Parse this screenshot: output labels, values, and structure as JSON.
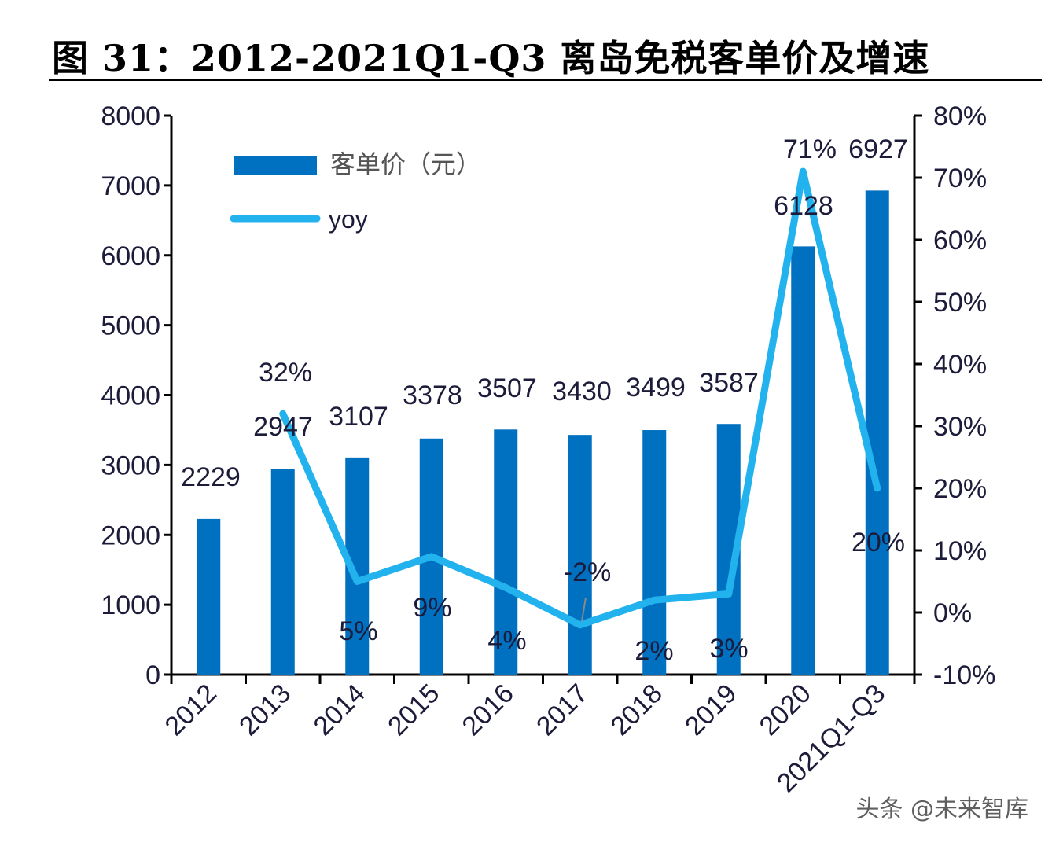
{
  "title": "图 31：2012-2021Q1-Q3 离岛免税客单价及增速",
  "watermark": "头条 @未来智库",
  "colors": {
    "bar": "#0070C0",
    "line": "#22B2EE",
    "axis": "#000000"
  },
  "chart_data": {
    "type": "bar+line",
    "categories": [
      "2012",
      "2013",
      "2014",
      "2015",
      "2016",
      "2017",
      "2018",
      "2019",
      "2020",
      "2021Q1-Q3"
    ],
    "series": [
      {
        "name": "客单价（元）",
        "type": "bar",
        "axis": "left",
        "values": [
          2229,
          2947,
          3107,
          3378,
          3507,
          3430,
          3499,
          3587,
          6128,
          6927
        ],
        "labels": [
          "2229",
          "2947",
          "3107",
          "3378",
          "3507",
          "3430",
          "3499",
          "3587",
          "6128",
          "6927"
        ]
      },
      {
        "name": "yoy",
        "type": "line",
        "axis": "right",
        "values": [
          null,
          32,
          5,
          9,
          4,
          -2,
          2,
          3,
          71,
          20
        ],
        "labels": [
          "",
          "32%",
          "5%",
          "9%",
          "4%",
          "-2%",
          "2%",
          "3%",
          "71%",
          "20%"
        ]
      }
    ],
    "left_axis": {
      "range": [
        0,
        8000
      ],
      "ticks": [
        "0",
        "1000",
        "2000",
        "3000",
        "4000",
        "5000",
        "6000",
        "7000",
        "8000"
      ]
    },
    "right_axis": {
      "range": [
        -10,
        80
      ],
      "ticks": [
        "-10%",
        "0%",
        "10%",
        "20%",
        "30%",
        "40%",
        "50%",
        "60%",
        "70%",
        "80%"
      ]
    },
    "legend": {
      "placement": "top-left",
      "entries": [
        "客单价（元）",
        "yoy"
      ]
    }
  }
}
